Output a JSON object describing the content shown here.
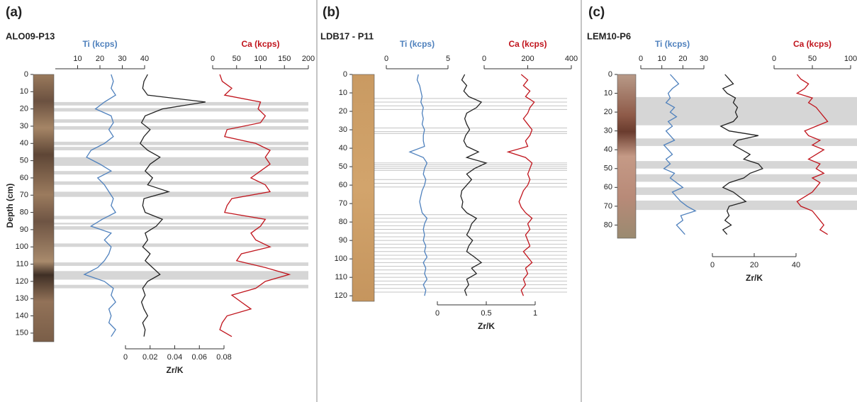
{
  "chart_data": [
    {
      "type": "core-log",
      "panel_label": "(a)",
      "core": "ALO09-P13",
      "ylabel": "Depth (cm)",
      "ylim": [
        0,
        155
      ],
      "yticks": [
        0,
        10,
        20,
        30,
        40,
        50,
        60,
        70,
        80,
        90,
        100,
        110,
        120,
        130,
        140,
        150
      ],
      "depth": [
        0,
        4,
        8,
        12,
        16,
        20,
        24,
        28,
        32,
        36,
        40,
        44,
        48,
        52,
        56,
        60,
        64,
        68,
        72,
        76,
        80,
        84,
        88,
        92,
        96,
        100,
        104,
        108,
        112,
        116,
        120,
        124,
        128,
        132,
        136,
        140,
        144,
        148,
        152
      ],
      "series": [
        {
          "name": "Ti (kcps)",
          "color": "#4f81bd",
          "axis": "top",
          "xlim": [
            0,
            40
          ],
          "xticks": [
            10,
            20,
            30,
            40
          ],
          "values": [
            25,
            26,
            25,
            27,
            22,
            18,
            25,
            26,
            24,
            26,
            22,
            16,
            14,
            20,
            25,
            19,
            22,
            24,
            26,
            25,
            27,
            21,
            16,
            25,
            22,
            25,
            24,
            22,
            19,
            13,
            22,
            26,
            25,
            27,
            24,
            25,
            24,
            27,
            25
          ]
        },
        {
          "name": "Zr/K",
          "color": "#222222",
          "axis": "bottom",
          "xlim": [
            0,
            0.08
          ],
          "xticks": [
            0,
            0.02,
            0.04,
            0.06,
            0.08
          ],
          "values": [
            0.018,
            0.015,
            0.014,
            0.018,
            0.065,
            0.03,
            0.016,
            0.013,
            0.02,
            0.015,
            0.012,
            0.018,
            0.028,
            0.02,
            0.016,
            0.022,
            0.018,
            0.035,
            0.015,
            0.014,
            0.016,
            0.03,
            0.025,
            0.016,
            0.018,
            0.014,
            0.02,
            0.016,
            0.022,
            0.028,
            0.018,
            0.014,
            0.016,
            0.013,
            0.015,
            0.018,
            0.014,
            0.016,
            0.015
          ]
        },
        {
          "name": "Ca (kcps)",
          "color": "#c0141c",
          "axis": "top",
          "xlim": [
            0,
            200
          ],
          "xticks": [
            0,
            50,
            100,
            150,
            200
          ],
          "values": [
            15,
            20,
            40,
            25,
            100,
            95,
            110,
            100,
            30,
            25,
            90,
            120,
            110,
            120,
            100,
            80,
            110,
            120,
            40,
            30,
            25,
            110,
            100,
            80,
            90,
            120,
            60,
            50,
            110,
            160,
            110,
            90,
            40,
            60,
            80,
            30,
            20,
            15,
            40
          ]
        }
      ],
      "bands": [
        [
          16,
          18
        ],
        [
          19.5,
          21.5
        ],
        [
          26,
          28
        ],
        [
          30,
          32
        ],
        [
          39,
          41
        ],
        [
          42,
          44
        ],
        [
          48,
          53
        ],
        [
          56,
          58
        ],
        [
          62,
          64
        ],
        [
          68,
          71
        ],
        [
          82,
          84
        ],
        [
          86,
          87
        ],
        [
          88,
          90
        ],
        [
          98,
          100
        ],
        [
          109,
          111
        ],
        [
          114,
          119
        ],
        [
          122,
          124
        ]
      ]
    },
    {
      "type": "core-log",
      "panel_label": "(b)",
      "core": "LDB17 - P11",
      "ylim": [
        0,
        123
      ],
      "yticks": [
        0,
        10,
        20,
        30,
        40,
        50,
        60,
        70,
        80,
        90,
        100,
        110,
        120
      ],
      "depth": [
        0,
        3,
        6,
        9,
        12,
        15,
        18,
        21,
        24,
        27,
        30,
        33,
        36,
        39,
        42,
        45,
        48,
        51,
        54,
        57,
        60,
        63,
        66,
        69,
        72,
        75,
        78,
        81,
        84,
        87,
        90,
        93,
        96,
        99,
        102,
        105,
        108,
        111,
        114,
        117,
        120
      ],
      "series": [
        {
          "name": "Ti (kcps)",
          "color": "#4f81bd",
          "axis": "top",
          "xlim": [
            0,
            5
          ],
          "xticks": [
            0,
            5
          ],
          "values": [
            2.6,
            2.5,
            2.7,
            2.8,
            2.9,
            2.8,
            3.0,
            2.9,
            3.0,
            2.9,
            3.1,
            3.0,
            3.0,
            3.1,
            1.9,
            3.0,
            3.3,
            3.1,
            3.0,
            3.2,
            3.1,
            2.9,
            2.8,
            2.7,
            2.8,
            2.9,
            3.3,
            3.1,
            3.0,
            3.1,
            3.0,
            3.2,
            3.1,
            3.3,
            3.0,
            3.2,
            3.1,
            3.3,
            3.0,
            3.2,
            3.1
          ]
        },
        {
          "name": "Zr/K",
          "color": "#222222",
          "axis": "bottom",
          "xlim": [
            0,
            1
          ],
          "xticks": [
            0,
            0.5,
            1
          ],
          "values": [
            0.28,
            0.25,
            0.3,
            0.27,
            0.32,
            0.45,
            0.4,
            0.3,
            0.28,
            0.3,
            0.33,
            0.29,
            0.27,
            0.3,
            0.42,
            0.3,
            0.5,
            0.38,
            0.3,
            0.35,
            0.3,
            0.25,
            0.24,
            0.26,
            0.25,
            0.3,
            0.4,
            0.35,
            0.33,
            0.3,
            0.36,
            0.32,
            0.3,
            0.38,
            0.45,
            0.35,
            0.4,
            0.3,
            0.32,
            0.28,
            0.3
          ]
        },
        {
          "name": "Ca (kcps)",
          "color": "#c0141c",
          "axis": "top",
          "xlim": [
            0,
            400
          ],
          "xticks": [
            0,
            200,
            400
          ],
          "values": [
            170,
            200,
            180,
            210,
            190,
            230,
            210,
            200,
            180,
            200,
            220,
            210,
            190,
            200,
            110,
            190,
            220,
            210,
            200,
            210,
            200,
            180,
            170,
            160,
            170,
            190,
            220,
            200,
            210,
            190,
            200,
            210,
            180,
            200,
            220,
            190,
            200,
            180,
            190,
            170,
            180
          ]
        }
      ],
      "laminae": [
        13,
        15,
        17,
        19,
        29,
        31,
        32,
        48,
        49,
        50,
        51,
        52,
        57,
        59,
        61,
        76,
        78,
        80,
        82,
        84,
        86,
        88,
        90,
        92,
        94,
        96,
        98,
        100,
        102,
        104,
        106,
        108,
        110,
        112,
        114,
        116,
        118
      ]
    },
    {
      "type": "core-log",
      "panel_label": "(c)",
      "core": "LEM10-P6",
      "ylim": [
        0,
        87
      ],
      "yticks": [
        0,
        10,
        20,
        30,
        40,
        50,
        60,
        70,
        80
      ],
      "depth": [
        0,
        2.5,
        5,
        7.5,
        10,
        12.5,
        15,
        17.5,
        20,
        22.5,
        25,
        27.5,
        30,
        32.5,
        35,
        37.5,
        40,
        42.5,
        45,
        47.5,
        50,
        52.5,
        55,
        57.5,
        60,
        62.5,
        65,
        67.5,
        70,
        72.5,
        75,
        77.5,
        80,
        82.5,
        85
      ],
      "series": [
        {
          "name": "Ti (kcps)",
          "color": "#4f81bd",
          "axis": "top",
          "xlim": [
            0,
            30
          ],
          "xticks": [
            0,
            10,
            20,
            30
          ],
          "values": [
            14,
            16,
            18,
            15,
            13,
            14,
            12,
            16,
            14,
            17,
            13,
            15,
            12,
            14,
            16,
            11,
            13,
            15,
            12,
            14,
            11,
            16,
            14,
            17,
            20,
            15,
            17,
            19,
            22,
            26,
            19,
            20,
            17,
            19,
            21
          ]
        },
        {
          "name": "Zr/K",
          "color": "#222222",
          "axis": "bottom",
          "xlim": [
            0,
            40
          ],
          "xticks": [
            0,
            20,
            40
          ],
          "values": [
            6,
            8,
            10,
            5,
            7,
            11,
            10,
            12,
            11,
            12,
            10,
            4,
            8,
            22,
            12,
            10,
            14,
            18,
            15,
            22,
            24,
            18,
            15,
            8,
            5,
            10,
            13,
            16,
            8,
            7,
            8,
            6,
            9,
            5,
            7
          ]
        },
        {
          "name": "Ca (kcps)",
          "color": "#c0141c",
          "axis": "top",
          "xlim": [
            0,
            100
          ],
          "xticks": [
            0,
            50,
            100
          ],
          "values": [
            30,
            35,
            45,
            40,
            30,
            50,
            45,
            55,
            60,
            65,
            70,
            55,
            40,
            45,
            60,
            50,
            65,
            55,
            45,
            60,
            55,
            65,
            50,
            60,
            55,
            50,
            40,
            30,
            35,
            50,
            55,
            60,
            65,
            60,
            70
          ]
        }
      ],
      "bands": [
        [
          12,
          27
        ],
        [
          34,
          38
        ],
        [
          46,
          50
        ],
        [
          53,
          57
        ],
        [
          60,
          64
        ],
        [
          67,
          72
        ]
      ]
    }
  ]
}
